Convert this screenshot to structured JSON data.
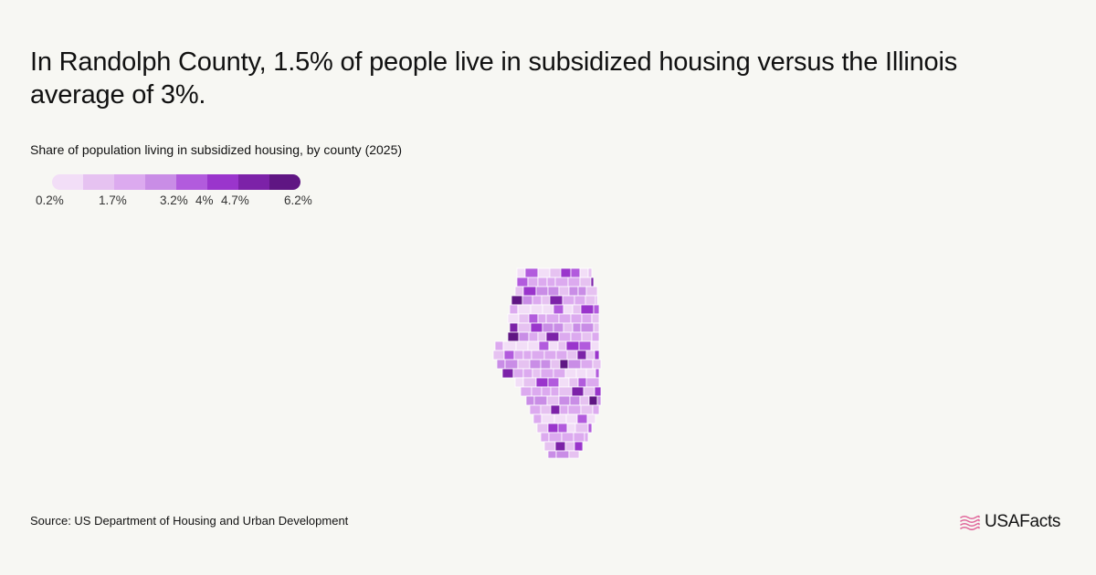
{
  "headline": "In Randolph County, 1.5% of people live in subsidized housing versus the Illinois average of 3%.",
  "subtitle": "Share of population living in subsidized housing, by county (2025)",
  "legend": {
    "colors": [
      "#f2def7",
      "#e6c2f1",
      "#dcaaef",
      "#c98de6",
      "#b25bdd",
      "#9a35cc",
      "#7c22a8",
      "#5f1683"
    ],
    "ticks": [
      "0.2%",
      "1.7%",
      "3.2%",
      "4%",
      "4.7%",
      "6.2%"
    ],
    "tick_values": [
      0.2,
      1.7,
      3.2,
      4.0,
      4.7,
      6.2
    ],
    "domain": [
      0.2,
      6.2
    ]
  },
  "map": {
    "region": "Illinois",
    "highlighted_county": "Randolph County",
    "highlighted_value": 1.5,
    "state_average": 3.0
  },
  "source": "Source: US Department of Housing and Urban Development",
  "logo": {
    "text": "USAFacts",
    "accent_color": "#e0669a"
  }
}
